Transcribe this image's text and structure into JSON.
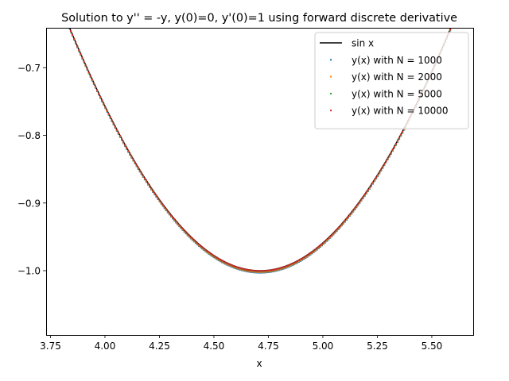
{
  "chart_data": {
    "type": "scatter",
    "title": "Solution to y'' = -y, y(0)=0, y'(0)=1 using forward discrete derivative",
    "xlabel": "x",
    "ylabel": "",
    "xlim": [
      3.73,
      5.69
    ],
    "ylim": [
      -1.095,
      -0.641
    ],
    "xticks": [
      3.75,
      4.0,
      4.25,
      4.5,
      4.75,
      5.0,
      5.25,
      5.5
    ],
    "xtick_labels": [
      "3.75",
      "4.00",
      "4.25",
      "4.50",
      "4.75",
      "5.00",
      "5.25",
      "5.50"
    ],
    "yticks": [
      -0.7,
      -0.8,
      -0.9,
      -1.0
    ],
    "ytick_labels": [
      "−0.7",
      "−0.8",
      "−0.9",
      "−1.0"
    ],
    "grid": false,
    "legend_position": "top-right",
    "series": [
      {
        "name": "sin x",
        "style": "line",
        "color": "#000000",
        "function": "sin",
        "x_start": 3.73,
        "x_end": 5.69
      },
      {
        "name": "y(x) with N = 1000",
        "style": "points",
        "color": "#1f77b4",
        "x_start": 3.73,
        "x_end": 5.69,
        "amplitude": 1.003
      },
      {
        "name": "y(x) with N = 2000",
        "style": "points",
        "color": "#ff7f0e",
        "x_start": 3.73,
        "x_end": 5.69,
        "amplitude": 1.002
      },
      {
        "name": "y(x) with N = 5000",
        "style": "points",
        "color": "#2ca02c",
        "x_start": 3.73,
        "x_end": 5.69,
        "amplitude": 1.001
      },
      {
        "name": "y(x) with N = 10000",
        "style": "points",
        "color": "#d62728",
        "x_start": 3.73,
        "x_end": 5.69,
        "amplitude": 1.0005
      }
    ]
  }
}
